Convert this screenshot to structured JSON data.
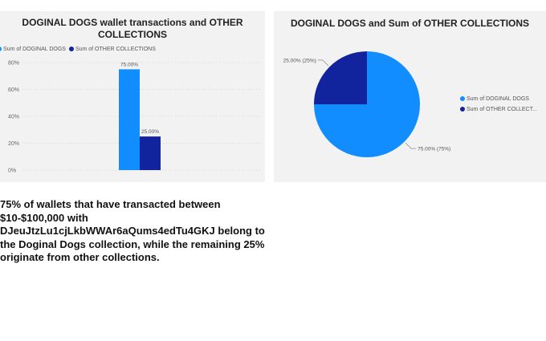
{
  "charts": {
    "bar_title": "DOGINAL DOGS wallet transactions and OTHER COLLECTIONS",
    "pie_title": "DOGINAL DOGS and Sum of OTHER COLLECTIONS"
  },
  "legend": [
    {
      "label": "Sum of DOGINAL DOGS",
      "color": "#118dff"
    },
    {
      "label": "Sum of OTHER COLLECTIONS",
      "color": "#12239e"
    }
  ],
  "pie_legend": [
    {
      "label": "Sum of DOGINAL DOGS",
      "color": "#118dff"
    },
    {
      "label": "Sum of OTHER COLLECT...",
      "color": "#12239e"
    }
  ],
  "description": "75% of wallets that have transacted between $10-$100,000 with DJeuJtzLu1cjLkbWWAr6aQums4edTu4GKJ belong to the Doginal Dogs collection, while the remaining 25% originate from other collections.",
  "chart_data": [
    {
      "type": "bar",
      "title": "DOGINAL DOGS wallet transactions and OTHER COLLECTIONS",
      "series": [
        {
          "name": "Sum of DOGINAL DOGS",
          "values": [
            75.0
          ],
          "color": "#118dff",
          "label": "75.00%"
        },
        {
          "name": "Sum of OTHER COLLECTIONS",
          "values": [
            25.0
          ],
          "color": "#12239e",
          "label": "25.00%"
        }
      ],
      "ylim": [
        0,
        80
      ],
      "yticks": [
        0,
        20,
        40,
        60,
        80
      ],
      "ytick_labels": [
        "0%",
        "20%",
        "40%",
        "60%",
        "80%"
      ],
      "grid": true,
      "legend": "top-left"
    },
    {
      "type": "pie",
      "title": "DOGINAL DOGS and Sum of OTHER COLLECTIONS",
      "slices": [
        {
          "name": "Sum of DOGINAL DOGS",
          "value": 75.0,
          "label": "75.00% (75%)",
          "color": "#118dff"
        },
        {
          "name": "Sum of OTHER COLLECTIONS",
          "value": 25.0,
          "label": "25.00% (25%)",
          "color": "#12239e"
        }
      ],
      "legend": "right"
    }
  ]
}
